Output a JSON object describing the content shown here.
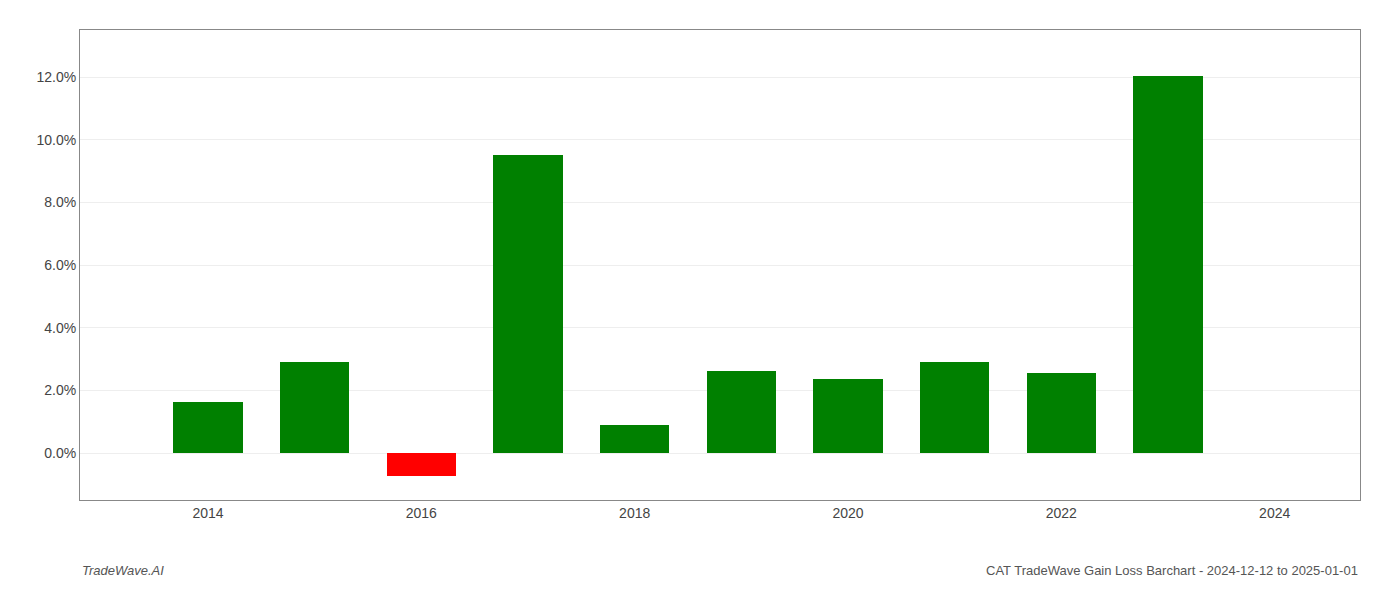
{
  "chart_data": {
    "type": "bar",
    "title": "CAT TradeWave Gain Loss Barchart - 2024-12-12 to 2025-01-01",
    "annotations": [
      "TradeWave.AI"
    ],
    "x": [
      2014,
      2015,
      2016,
      2017,
      2018,
      2019,
      2020,
      2021,
      2022,
      2023
    ],
    "values": [
      1.62,
      2.9,
      -0.72,
      9.52,
      0.9,
      2.62,
      2.35,
      2.9,
      2.55,
      12.02
    ],
    "colors": [
      "#008000",
      "#008000",
      "#ff0000",
      "#008000",
      "#008000",
      "#008000",
      "#008000",
      "#008000",
      "#008000",
      "#008000"
    ],
    "xlim": [
      2012.8,
      2024.8
    ],
    "xticks": [
      2014,
      2016,
      2018,
      2020,
      2022,
      2024
    ],
    "ylim": [
      -1.5,
      13.5
    ],
    "yticks": [
      {
        "value": 0.0,
        "label": "0.0%"
      },
      {
        "value": 2.0,
        "label": "2.0%"
      },
      {
        "value": 4.0,
        "label": "4.0%"
      },
      {
        "value": 6.0,
        "label": "6.0%"
      },
      {
        "value": 8.0,
        "label": "8.0%"
      },
      {
        "value": 10.0,
        "label": "10.0%"
      },
      {
        "value": 12.0,
        "label": "12.0%"
      }
    ],
    "grid": true
  }
}
